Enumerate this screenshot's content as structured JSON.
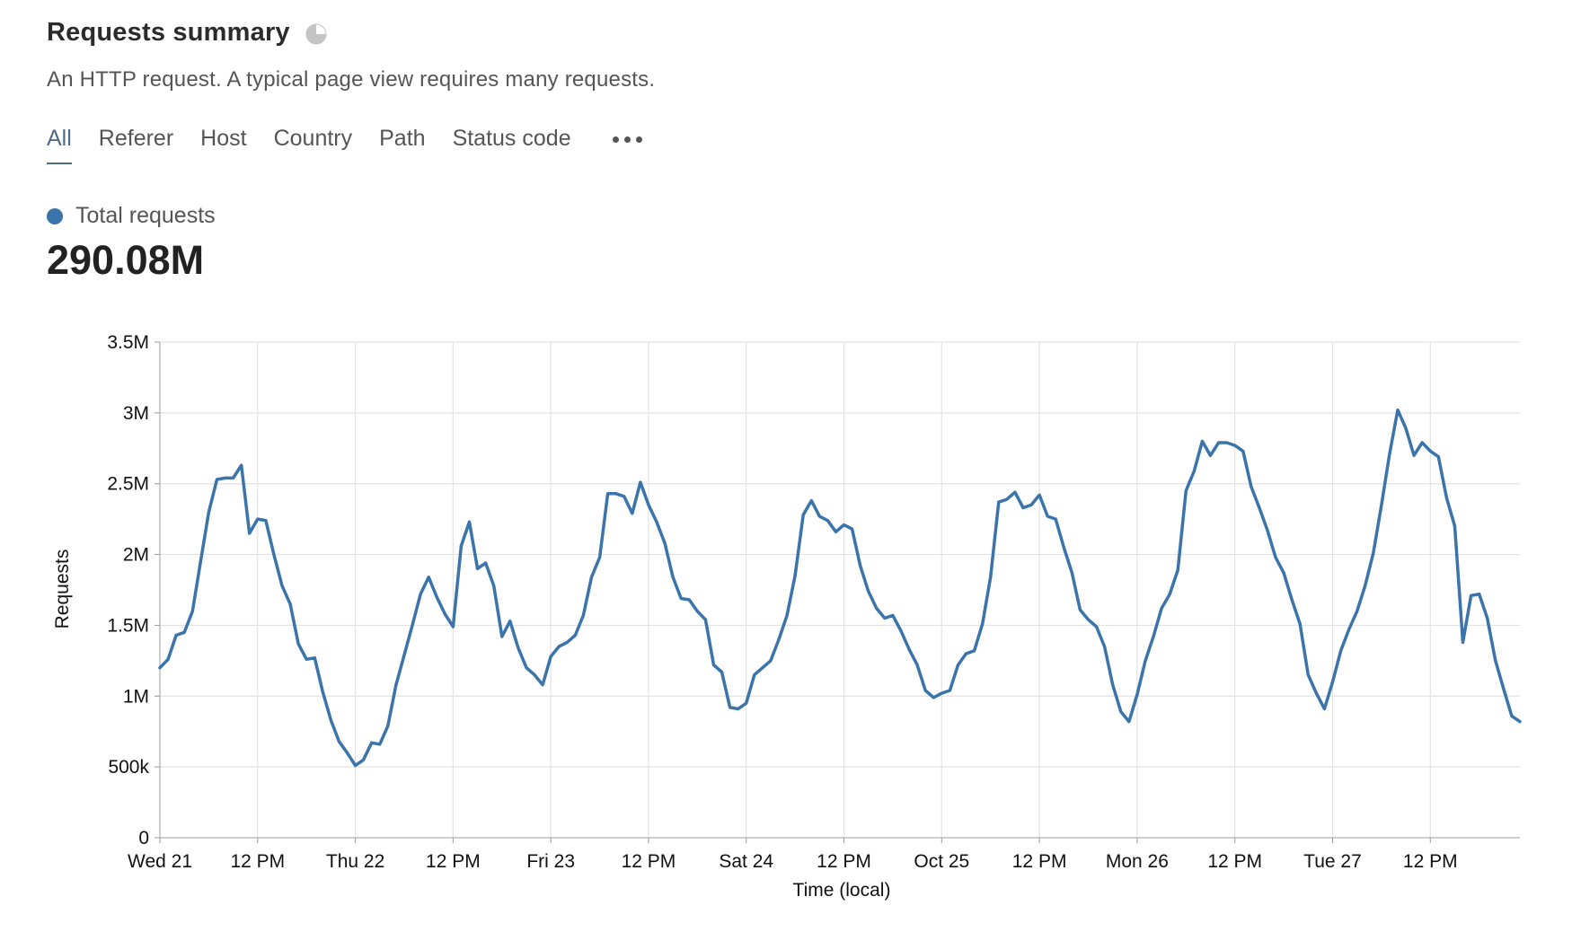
{
  "header": {
    "title": "Requests summary",
    "subtitle": "An HTTP request. A typical page view requires many requests."
  },
  "icons": {
    "title_icon": "pie-chart-icon",
    "more_icon": "more-horizontal-icon"
  },
  "tabs": [
    {
      "label": "All",
      "active": true
    },
    {
      "label": "Referer",
      "active": false
    },
    {
      "label": "Host",
      "active": false
    },
    {
      "label": "Country",
      "active": false
    },
    {
      "label": "Path",
      "active": false
    },
    {
      "label": "Status code",
      "active": false
    }
  ],
  "summary": {
    "series_label": "Total requests",
    "total": "290.08M",
    "color": "#3b73ab"
  },
  "chart_data": {
    "type": "line",
    "title": "",
    "xlabel": "Time (local)",
    "ylabel": "Requests",
    "ylim": [
      0,
      3500000
    ],
    "xlim": [
      "2020-10-21T00:00",
      "2020-10-27T23:00"
    ],
    "x_interval": "hourly",
    "yticks": [
      {
        "value": 0,
        "label": "0"
      },
      {
        "value": 500000,
        "label": "500k"
      },
      {
        "value": 1000000,
        "label": "1M"
      },
      {
        "value": 1500000,
        "label": "1.5M"
      },
      {
        "value": 2000000,
        "label": "2M"
      },
      {
        "value": 2500000,
        "label": "2.5M"
      },
      {
        "value": 3000000,
        "label": "3M"
      },
      {
        "value": 3500000,
        "label": "3.5M"
      }
    ],
    "xticks": [
      {
        "time": "2020-10-21T00:00",
        "label": "Wed 21"
      },
      {
        "time": "2020-10-21T12:00",
        "label": "12 PM"
      },
      {
        "time": "2020-10-22T00:00",
        "label": "Thu 22"
      },
      {
        "time": "2020-10-22T12:00",
        "label": "12 PM"
      },
      {
        "time": "2020-10-23T00:00",
        "label": "Fri 23"
      },
      {
        "time": "2020-10-23T12:00",
        "label": "12 PM"
      },
      {
        "time": "2020-10-24T00:00",
        "label": "Sat 24"
      },
      {
        "time": "2020-10-24T12:00",
        "label": "12 PM"
      },
      {
        "time": "2020-10-25T00:00",
        "label": "Oct 25"
      },
      {
        "time": "2020-10-25T12:00",
        "label": "12 PM"
      },
      {
        "time": "2020-10-26T00:00",
        "label": "Mon 26"
      },
      {
        "time": "2020-10-26T12:00",
        "label": "12 PM"
      },
      {
        "time": "2020-10-27T00:00",
        "label": "Tue 27"
      },
      {
        "time": "2020-10-27T12:00",
        "label": "12 PM"
      }
    ],
    "grid": true,
    "series": [
      {
        "name": "Total requests",
        "values": [
          1200000,
          1260000,
          1430000,
          1450000,
          1600000,
          1950000,
          2300000,
          2530000,
          2540000,
          2540000,
          2630000,
          2150000,
          2250000,
          2240000,
          2000000,
          1780000,
          1650000,
          1370000,
          1260000,
          1270000,
          1030000,
          830000,
          680000,
          600000,
          510000,
          550000,
          670000,
          660000,
          790000,
          1080000,
          1290000,
          1500000,
          1720000,
          1840000,
          1700000,
          1580000,
          1490000,
          2060000,
          2230000,
          1900000,
          1940000,
          1780000,
          1420000,
          1530000,
          1340000,
          1200000,
          1150000,
          1080000,
          1280000,
          1350000,
          1380000,
          1430000,
          1570000,
          1840000,
          1980000,
          2430000,
          2430000,
          2410000,
          2290000,
          2510000,
          2350000,
          2230000,
          2080000,
          1840000,
          1690000,
          1680000,
          1600000,
          1540000,
          1220000,
          1170000,
          920000,
          910000,
          950000,
          1150000,
          1200000,
          1250000,
          1400000,
          1570000,
          1850000,
          2280000,
          2380000,
          2270000,
          2240000,
          2160000,
          2210000,
          2180000,
          1920000,
          1740000,
          1620000,
          1550000,
          1570000,
          1460000,
          1330000,
          1220000,
          1040000,
          990000,
          1020000,
          1040000,
          1220000,
          1300000,
          1320000,
          1510000,
          1840000,
          2370000,
          2390000,
          2440000,
          2330000,
          2350000,
          2420000,
          2270000,
          2250000,
          2050000,
          1870000,
          1610000,
          1540000,
          1490000,
          1350000,
          1080000,
          890000,
          820000,
          1010000,
          1250000,
          1420000,
          1620000,
          1720000,
          1890000,
          2450000,
          2590000,
          2800000,
          2700000,
          2790000,
          2790000,
          2770000,
          2730000,
          2480000,
          2330000,
          2170000,
          1980000,
          1870000,
          1680000,
          1510000,
          1150000,
          1020000,
          910000,
          1100000,
          1320000,
          1470000,
          1600000,
          1780000,
          2010000,
          2350000,
          2710000,
          3020000,
          2890000,
          2700000,
          2790000,
          2730000,
          2690000,
          2400000,
          2200000,
          1380000,
          1710000,
          1720000,
          1550000,
          1250000,
          1050000,
          860000,
          820000
        ]
      }
    ]
  }
}
